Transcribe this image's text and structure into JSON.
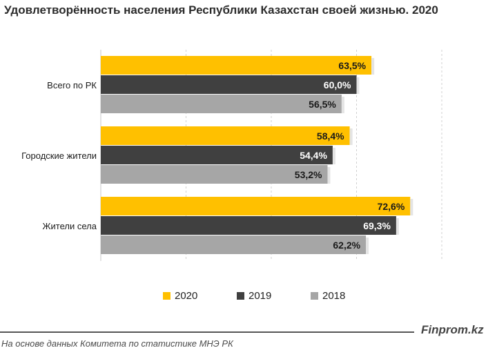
{
  "chart_data": {
    "type": "bar",
    "orientation": "horizontal",
    "title": "Удовлетворённость населения Республики Казахстан  своей жизнью. 2020",
    "categories": [
      "Всего по РК",
      "Городские жители",
      "Жители села"
    ],
    "series": [
      {
        "name": "2020",
        "values": [
          63.5,
          58.4,
          72.6
        ],
        "labels": [
          "63,5%",
          "58,4%",
          "72,6%"
        ],
        "color": "#FFC000"
      },
      {
        "name": "2019",
        "values": [
          60.0,
          54.4,
          69.3
        ],
        "labels": [
          "60,0%",
          "54,4%",
          "69,3%"
        ],
        "color": "#404040"
      },
      {
        "name": "2018",
        "values": [
          56.5,
          53.2,
          62.2
        ],
        "labels": [
          "56,5%",
          "53,2%",
          "62,2%"
        ],
        "color": "#A6A6A6"
      }
    ],
    "xlim": [
      0,
      80
    ],
    "grid": true,
    "legend_position": "bottom"
  },
  "brand": "Finprom.kz",
  "source": "На основе данных  Комитета по статистике МНЭ РК"
}
